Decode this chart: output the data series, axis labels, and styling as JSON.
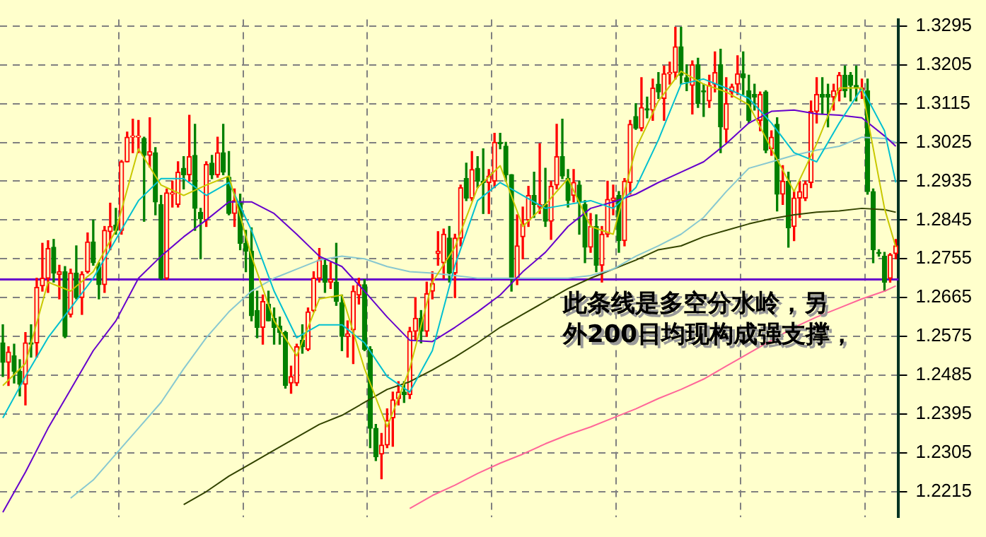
{
  "chart_data": {
    "type": "candlestick",
    "categories": [
      null,
      null,
      null,
      null,
      null,
      null,
      null,
      null,
      null,
      null,
      null,
      null,
      null,
      null,
      null,
      null,
      null,
      null,
      null,
      null,
      null,
      null,
      null,
      null,
      null,
      null,
      null,
      null,
      null,
      null,
      null,
      null,
      null,
      null,
      null,
      null,
      null,
      null,
      null,
      null,
      null,
      null,
      null,
      null,
      null,
      null,
      null,
      null,
      null,
      null,
      null,
      null,
      null,
      null,
      null,
      null,
      null,
      null,
      null,
      null,
      null,
      null,
      null,
      null,
      null,
      null,
      null,
      null,
      null,
      null,
      null,
      null,
      null,
      null,
      null,
      null,
      null,
      null,
      null,
      null,
      null,
      null,
      null,
      null,
      null,
      null,
      null,
      null,
      null,
      null,
      null,
      null,
      null,
      null,
      null,
      null,
      null,
      null,
      null,
      null,
      null,
      null,
      null,
      null,
      null,
      null,
      null,
      null,
      null,
      null,
      null,
      null,
      null,
      null,
      null,
      null,
      null,
      null,
      null,
      null,
      null,
      null,
      null,
      null,
      null,
      null,
      null,
      null,
      null,
      null,
      null,
      null,
      null,
      null,
      null,
      null,
      null,
      null,
      null,
      null,
      null,
      null,
      null,
      null,
      null,
      null,
      null,
      null,
      null,
      null,
      null,
      null,
      null,
      null,
      null,
      null,
      null,
      null,
      null
    ],
    "ohlc": [
      [
        1.256,
        1.2602,
        1.2482,
        1.2515
      ],
      [
        1.2515,
        1.2551,
        1.2461,
        1.2539
      ],
      [
        1.253,
        1.2557,
        1.2467,
        1.2494
      ],
      [
        1.2494,
        1.2521,
        1.2437,
        1.2464
      ],
      [
        1.2464,
        1.2584,
        1.2416,
        1.256
      ],
      [
        1.256,
        1.2602,
        1.2527,
        1.2557
      ],
      [
        1.256,
        1.271,
        1.2527,
        1.2689
      ],
      [
        1.2692,
        1.2791,
        1.268,
        1.271
      ],
      [
        1.271,
        1.2797,
        1.2677,
        1.2779
      ],
      [
        1.2782,
        1.28,
        1.2701,
        1.2722
      ],
      [
        1.2719,
        1.274,
        1.2662,
        1.2725
      ],
      [
        1.2725,
        1.2737,
        1.2572,
        1.2575
      ],
      [
        1.2626,
        1.2731,
        1.262,
        1.2722
      ],
      [
        1.2722,
        1.2785,
        1.2662,
        1.2665
      ],
      [
        1.2665,
        1.2725,
        1.2626,
        1.2719
      ],
      [
        1.2725,
        1.2815,
        1.2722,
        1.2794
      ],
      [
        1.2794,
        1.2845,
        1.274,
        1.2746
      ],
      [
        1.2737,
        1.2746,
        1.2662,
        1.2695
      ],
      [
        1.2695,
        1.283,
        1.2677,
        1.2821
      ],
      [
        1.2818,
        1.2884,
        1.2776,
        1.283
      ],
      [
        1.2833,
        1.2872,
        1.2812,
        1.2821
      ],
      [
        1.2821,
        1.2983,
        1.2812,
        1.298
      ],
      [
        1.298,
        1.3049,
        1.298,
        1.3037
      ],
      [
        1.3037,
        1.3079,
        1.3001,
        1.304
      ],
      [
        1.3037,
        1.3076,
        1.3001,
        1.304
      ],
      [
        1.3034,
        1.3037,
        1.2842,
        1.2995
      ],
      [
        1.2995,
        1.3082,
        1.2968,
        1.3004
      ],
      [
        1.3001,
        1.3013,
        1.2857,
        1.2887
      ],
      [
        1.2881,
        1.2902,
        1.2707,
        1.271
      ],
      [
        1.271,
        1.2917,
        1.2707,
        1.2908
      ],
      [
        1.2905,
        1.2935,
        1.2875,
        1.2908
      ],
      [
        1.2881,
        1.298,
        1.2875,
        1.2956
      ],
      [
        1.2965,
        1.2992,
        1.2917,
        1.295
      ],
      [
        1.295,
        1.3088,
        1.2935,
        1.2992
      ],
      [
        1.2995,
        1.3067,
        1.2821,
        1.2872
      ],
      [
        1.2863,
        1.2872,
        1.2755,
        1.2848
      ],
      [
        1.2845,
        1.298,
        1.283,
        1.2974
      ],
      [
        1.2977,
        1.2995,
        1.2941,
        1.295
      ],
      [
        1.295,
        1.3037,
        1.2944,
        1.3001
      ],
      [
        1.3001,
        1.3067,
        1.295,
        1.2956
      ],
      [
        1.2944,
        1.3004,
        1.2857,
        1.286
      ],
      [
        1.286,
        1.2917,
        1.283,
        1.289
      ],
      [
        1.2887,
        1.2905,
        1.2776,
        1.2791
      ],
      [
        1.2791,
        1.2821,
        1.2725,
        1.2773
      ],
      [
        1.2773,
        1.2827,
        1.2611,
        1.2623
      ],
      [
        1.2635,
        1.268,
        1.2572,
        1.2596
      ],
      [
        1.2596,
        1.2671,
        1.2557,
        1.2656
      ],
      [
        1.265,
        1.268,
        1.2611,
        1.2611
      ],
      [
        1.2617,
        1.2641,
        1.2557,
        1.2596
      ],
      [
        1.2599,
        1.262,
        1.2557,
        1.2584
      ],
      [
        1.2584,
        1.2587,
        1.2455,
        1.2461
      ],
      [
        1.2467,
        1.2506,
        1.2443,
        1.2482
      ],
      [
        1.2467,
        1.2557,
        1.2461,
        1.2551
      ],
      [
        1.2566,
        1.2602,
        1.2536,
        1.2551
      ],
      [
        1.2545,
        1.2641,
        1.2542,
        1.2632
      ],
      [
        1.2635,
        1.2725,
        1.2632,
        1.271
      ],
      [
        1.271,
        1.2779,
        1.2701,
        1.2752
      ],
      [
        1.274,
        1.2755,
        1.2677,
        1.2701
      ],
      [
        1.2701,
        1.2746,
        1.2686,
        1.2707
      ],
      [
        1.2701,
        1.2791,
        1.2647,
        1.2656
      ],
      [
        1.2653,
        1.2671,
        1.2542,
        1.2575
      ],
      [
        1.2575,
        1.2611,
        1.2527,
        1.2581
      ],
      [
        1.259,
        1.2692,
        1.2512,
        1.268
      ],
      [
        1.2671,
        1.271,
        1.265,
        1.2695
      ],
      [
        1.2695,
        1.2707,
        1.2542,
        1.2545
      ],
      [
        1.2545,
        1.2551,
        1.2317,
        1.2362
      ],
      [
        1.2362,
        1.2371,
        1.2287,
        1.2296
      ],
      [
        1.2302,
        1.235,
        1.2245,
        1.2323
      ],
      [
        1.2323,
        1.2407,
        1.2317,
        1.238
      ],
      [
        1.2386,
        1.2446,
        1.232,
        1.2428
      ],
      [
        1.2431,
        1.247,
        1.2416,
        1.2446
      ],
      [
        1.2446,
        1.247,
        1.2422,
        1.244
      ],
      [
        1.244,
        1.2596,
        1.2431,
        1.2587
      ],
      [
        1.2587,
        1.2665,
        1.2566,
        1.2617
      ],
      [
        1.2617,
        1.2635,
        1.256,
        1.2587
      ],
      [
        1.2587,
        1.2701,
        1.2575,
        1.2674
      ],
      [
        1.268,
        1.2725,
        1.2662,
        1.2698
      ],
      [
        1.2767,
        1.2818,
        1.274,
        1.2773
      ],
      [
        1.2746,
        1.2824,
        1.271,
        1.2812
      ],
      [
        1.2803,
        1.283,
        1.2701,
        1.2722
      ],
      [
        1.2722,
        1.2812,
        1.2665,
        1.2803
      ],
      [
        1.2803,
        1.2926,
        1.2785,
        1.292
      ],
      [
        1.2941,
        1.2977,
        1.289,
        1.2896
      ],
      [
        1.2896,
        1.3004,
        1.289,
        1.2962
      ],
      [
        1.2965,
        1.2992,
        1.292,
        1.2935
      ],
      [
        1.2935,
        1.301,
        1.286,
        1.2932
      ],
      [
        1.2932,
        1.2962,
        1.286,
        1.2947
      ],
      [
        1.2935,
        1.3046,
        1.292,
        1.3025
      ],
      [
        1.3025,
        1.3046,
        1.301,
        1.3022
      ],
      [
        1.3016,
        1.3025,
        1.2935,
        1.295
      ],
      [
        1.295,
        1.295,
        1.268,
        1.271
      ],
      [
        1.271,
        1.2857,
        1.2695,
        1.2785
      ],
      [
        1.2806,
        1.2875,
        1.2755,
        1.2836
      ],
      [
        1.2845,
        1.2923,
        1.283,
        1.2902
      ],
      [
        1.2902,
        1.2956,
        1.2851,
        1.2881
      ],
      [
        1.2875,
        1.3022,
        1.286,
        1.2881
      ],
      [
        1.2881,
        1.2965,
        1.283,
        1.2842
      ],
      [
        1.2842,
        1.2935,
        1.28,
        1.2923
      ],
      [
        1.2926,
        1.3067,
        1.2917,
        1.2992
      ],
      [
        1.2992,
        1.3079,
        1.2941,
        1.2947
      ],
      [
        1.2941,
        1.2962,
        1.2875,
        1.289
      ],
      [
        1.2902,
        1.2962,
        1.2887,
        1.2932
      ],
      [
        1.2926,
        1.2935,
        1.2812,
        1.2887
      ],
      [
        1.2881,
        1.289,
        1.2746,
        1.2782
      ],
      [
        1.2782,
        1.286,
        1.277,
        1.283
      ],
      [
        1.283,
        1.2857,
        1.2725,
        1.274
      ],
      [
        1.274,
        1.283,
        1.2701,
        1.2812
      ],
      [
        1.2812,
        1.2935,
        1.2806,
        1.2893
      ],
      [
        1.289,
        1.2926,
        1.2857,
        1.2896
      ],
      [
        1.2902,
        1.2911,
        1.277,
        1.2797
      ],
      [
        1.2797,
        1.2941,
        1.2785,
        1.2935
      ],
      [
        1.2932,
        1.3076,
        1.2905,
        1.3067
      ],
      [
        1.3085,
        1.3115,
        1.3055,
        1.3058
      ],
      [
        1.3058,
        1.3175,
        1.3052,
        1.3106
      ],
      [
        1.3103,
        1.313,
        1.3082,
        1.31
      ],
      [
        1.31,
        1.3172,
        1.3076,
        1.3151
      ],
      [
        1.316,
        1.3187,
        1.3127,
        1.3142
      ],
      [
        1.3127,
        1.3202,
        1.3076,
        1.3184
      ],
      [
        1.3184,
        1.3211,
        1.316,
        1.3187
      ],
      [
        1.3187,
        1.3292,
        1.3172,
        1.3247
      ],
      [
        1.3247,
        1.3292,
        1.316,
        1.3181
      ],
      [
        1.3175,
        1.3205,
        1.3145,
        1.3166
      ],
      [
        1.3157,
        1.3214,
        1.3091,
        1.3205
      ],
      [
        1.3205,
        1.322,
        1.3106,
        1.3115
      ],
      [
        1.3145,
        1.316,
        1.3085,
        1.3142
      ],
      [
        1.3121,
        1.3181,
        1.3106,
        1.3157
      ],
      [
        1.316,
        1.3235,
        1.3142,
        1.3187
      ],
      [
        1.3205,
        1.3241,
        1.3001,
        1.3061
      ],
      [
        1.3055,
        1.3175,
        1.3025,
        1.3115
      ],
      [
        1.3142,
        1.316,
        1.313,
        1.3154
      ],
      [
        1.316,
        1.3226,
        1.3136,
        1.3184
      ],
      [
        1.3184,
        1.3235,
        1.3136,
        1.3175
      ],
      [
        1.3145,
        1.3181,
        1.307,
        1.3076
      ],
      [
        1.3136,
        1.316,
        1.31,
        1.313
      ],
      [
        1.3076,
        1.3142,
        1.3052,
        1.3136
      ],
      [
        1.3142,
        1.3145,
        1.3001,
        1.3007
      ],
      [
        1.301,
        1.3052,
        1.2995,
        1.3037
      ],
      [
        1.3067,
        1.3082,
        1.2866,
        1.2905
      ],
      [
        1.2905,
        1.2971,
        1.2881,
        1.2935
      ],
      [
        1.2935,
        1.2956,
        1.2782,
        1.2827
      ],
      [
        1.283,
        1.2911,
        1.2797,
        1.2896
      ],
      [
        1.2896,
        1.2935,
        1.2851,
        1.2911
      ],
      [
        1.2896,
        1.2935,
        1.289,
        1.2929
      ],
      [
        1.2932,
        1.3121,
        1.292,
        1.3097
      ],
      [
        1.3097,
        1.3175,
        1.307,
        1.3136
      ],
      [
        1.3136,
        1.3175,
        1.3091,
        1.313
      ],
      [
        1.3136,
        1.316,
        1.3061,
        1.313
      ],
      [
        1.313,
        1.316,
        1.31,
        1.3145
      ],
      [
        1.3145,
        1.3187,
        1.3121,
        1.3181
      ],
      [
        1.3181,
        1.3202,
        1.313,
        1.3145
      ],
      [
        1.3181,
        1.3187,
        1.3121,
        1.3157
      ],
      [
        1.3157,
        1.3202,
        1.3121,
        1.3151
      ],
      [
        1.3142,
        1.3172,
        1.3127,
        1.3151
      ],
      [
        1.3145,
        1.3172,
        1.2905,
        1.2911
      ],
      [
        1.2911,
        1.2917,
        1.2746,
        1.2776
      ],
      [
        1.277,
        1.2776,
        1.2761,
        1.2767
      ],
      [
        1.2761,
        1.277,
        1.268,
        1.2701
      ],
      [
        1.271,
        1.2767,
        1.2701,
        1.2764
      ],
      [
        1.2767,
        1.28,
        1.2755,
        1.2785
      ]
    ],
    "colors": [
      "#008000",
      "#ff0000",
      "#008000",
      "#008000",
      "#ff0000",
      "#008000",
      "#ff0000",
      "#ff0000",
      "#ff0000",
      "#008000",
      "#ff0000",
      "#008000",
      "#ff0000",
      "#008000",
      "#ff0000",
      "#ff0000",
      "#008000",
      "#008000",
      "#ff0000",
      "#ff0000",
      "#008000",
      "#ff0000",
      "#ff0000",
      "#ff0000",
      "#ff0000",
      "#008000",
      "#ff0000",
      "#008000",
      "#008000",
      "#ff0000",
      "#ff0000",
      "#ff0000",
      "#008000",
      "#ff0000",
      "#008000",
      "#008000",
      "#ff0000",
      "#008000",
      "#ff0000",
      "#008000",
      "#008000",
      "#ff0000",
      "#008000",
      "#008000",
      "#008000",
      "#008000",
      "#ff0000",
      "#008000",
      "#008000",
      "#008000",
      "#008000",
      "#ff0000",
      "#ff0000",
      "#008000",
      "#ff0000",
      "#ff0000",
      "#ff0000",
      "#008000",
      "#ff0000",
      "#008000",
      "#008000",
      "#ff0000",
      "#ff0000",
      "#ff0000",
      "#008000",
      "#008000",
      "#008000",
      "#ff0000",
      "#ff0000",
      "#ff0000",
      "#ff0000",
      "#008000",
      "#ff0000",
      "#ff0000",
      "#008000",
      "#ff0000",
      "#ff0000",
      "#ff0000",
      "#ff0000",
      "#008000",
      "#ff0000",
      "#ff0000",
      "#008000",
      "#ff0000",
      "#008000",
      "#008000",
      "#ff0000",
      "#ff0000",
      "#008000",
      "#008000",
      "#008000",
      "#ff0000",
      "#ff0000",
      "#ff0000",
      "#008000",
      "#ff0000",
      "#008000",
      "#ff0000",
      "#ff0000",
      "#008000",
      "#008000",
      "#ff0000",
      "#008000",
      "#008000",
      "#ff0000",
      "#008000",
      "#ff0000",
      "#ff0000",
      "#ff0000",
      "#008000",
      "#ff0000",
      "#ff0000",
      "#008000",
      "#ff0000",
      "#008000",
      "#ff0000",
      "#008000",
      "#ff0000",
      "#ff0000",
      "#ff0000",
      "#008000",
      "#008000",
      "#ff0000",
      "#008000",
      "#008000",
      "#ff0000",
      "#ff0000",
      "#008000",
      "#ff0000",
      "#ff0000",
      "#ff0000",
      "#008000",
      "#008000",
      "#008000",
      "#ff0000",
      "#008000",
      "#ff0000",
      "#008000",
      "#ff0000",
      "#008000",
      "#ff0000",
      "#ff0000",
      "#ff0000",
      "#ff0000",
      "#ff0000",
      "#008000",
      "#008000",
      "#ff0000",
      "#ff0000",
      "#008000",
      "#008000",
      "#008000",
      "#ff0000",
      "#008000",
      "#008000",
      "#008000",
      "#008000",
      "#ff0000",
      "#ff0000"
    ],
    "series": [
      {
        "type": "line",
        "color": "#c8c800",
        "values": [
          1.2461,
          null,
          null,
          null,
          1.2512,
          null,
          null,
          null,
          1.2701,
          null,
          null,
          null,
          1.268,
          null,
          null,
          null,
          1.2725,
          null,
          null,
          null,
          1.2821,
          null,
          null,
          null,
          1.301,
          null,
          null,
          null,
          1.2926,
          null,
          null,
          null,
          1.2902,
          null,
          null,
          null,
          1.2926,
          null,
          null,
          null,
          1.2947,
          null,
          null,
          null,
          1.2761,
          null,
          null,
          null,
          1.2611,
          null,
          null,
          null,
          1.253,
          null,
          null,
          null,
          1.2662,
          null,
          null,
          null,
          1.2671,
          null,
          null,
          null,
          1.25,
          null,
          null,
          null,
          1.2365,
          null,
          null,
          null,
          1.25,
          null,
          null,
          null,
          1.2701,
          null,
          null,
          null,
          1.2782,
          null,
          null,
          null,
          1.292,
          null,
          null,
          null,
          1.2971,
          null,
          null,
          null,
          1.283,
          null,
          null,
          null,
          1.2881,
          null,
          null,
          null,
          1.2941,
          null,
          null,
          null,
          1.283,
          null,
          null,
          null,
          1.2812,
          null,
          null,
          null,
          1.301,
          null,
          null,
          null,
          1.3121,
          null,
          null,
          null,
          1.319,
          null,
          null,
          null,
          1.316,
          null,
          null,
          null,
          1.3142,
          null,
          null,
          null,
          1.3112,
          null,
          null,
          null,
          1.301,
          null,
          null,
          null,
          1.2911,
          null,
          null,
          null,
          1.3022,
          null,
          null,
          null,
          1.3151,
          null,
          null,
          null,
          1.3151,
          null,
          null,
          null,
          1.2872,
          null,
          1.2782
        ]
      },
      {
        "type": "line",
        "color": "#00c0d0",
        "values": [
          1.2386,
          null,
          null,
          null,
          1.2482,
          null,
          null,
          null,
          1.2572,
          null,
          null,
          null,
          1.2641,
          null,
          null,
          null,
          1.271,
          null,
          null,
          null,
          1.28,
          null,
          null,
          null,
          1.289,
          null,
          null,
          null,
          1.2941,
          null,
          null,
          null,
          1.2941,
          null,
          null,
          null,
          1.2902,
          null,
          null,
          null,
          1.2932,
          null,
          null,
          null,
          1.2821,
          null,
          null,
          null,
          1.268,
          null,
          null,
          null,
          1.2572,
          null,
          null,
          null,
          1.2602,
          null,
          null,
          null,
          1.2602,
          null,
          null,
          null,
          1.256,
          null,
          null,
          null,
          1.2482,
          null,
          null,
          null,
          1.2446,
          null,
          null,
          null,
          1.2542,
          null,
          null,
          null,
          1.274,
          null,
          null,
          null,
          1.289,
          null,
          null,
          null,
          1.2932,
          null,
          null,
          null,
          1.2902,
          null,
          null,
          null,
          1.2872,
          null,
          null,
          null,
          1.2881,
          null,
          null,
          null,
          1.289,
          null,
          null,
          null,
          1.2872,
          null,
          null,
          null,
          1.292,
          null,
          null,
          null,
          1.3031,
          null,
          null,
          null,
          1.316,
          null,
          null,
          null,
          1.3172,
          null,
          null,
          null,
          1.3151,
          null,
          null,
          null,
          1.3127,
          null,
          null,
          null,
          1.307,
          null,
          null,
          null,
          1.3001,
          null,
          null,
          null,
          1.298,
          null,
          null,
          null,
          1.307,
          null,
          null,
          null,
          1.3151,
          null,
          null,
          null,
          1.3052,
          null,
          1.2932
        ]
      },
      {
        "type": "line",
        "color": "#6600cc",
        "values": [
          1.2167,
          null,
          null,
          null,
          1.226,
          null,
          null,
          null,
          1.2362,
          null,
          null,
          null,
          1.2452,
          null,
          null,
          null,
          1.2542,
          null,
          null,
          null,
          1.2611,
          null,
          null,
          null,
          1.271,
          null,
          null,
          null,
          1.2761,
          null,
          null,
          null,
          1.2806,
          null,
          null,
          null,
          1.2845,
          null,
          null,
          null,
          1.2887,
          null,
          null,
          null,
          1.2887,
          null,
          null,
          null,
          1.286,
          null,
          null,
          null,
          1.2812,
          null,
          null,
          null,
          1.2761,
          null,
          null,
          null,
          1.2737,
          null,
          null,
          null,
          1.268,
          null,
          null,
          null,
          1.262,
          null,
          null,
          null,
          1.2566,
          null,
          null,
          null,
          1.2563,
          null,
          null,
          null,
          1.2596,
          null,
          null,
          null,
          1.2632,
          null,
          null,
          null,
          1.2671,
          null,
          null,
          null,
          1.2725,
          null,
          null,
          null,
          1.277,
          null,
          null,
          null,
          1.283,
          null,
          null,
          null,
          1.2872,
          null,
          null,
          null,
          1.2887,
          null,
          null,
          null,
          1.2905,
          null,
          null,
          null,
          1.2932,
          null,
          null,
          null,
          1.2956,
          null,
          null,
          null,
          1.298,
          null,
          null,
          null,
          1.3022,
          null,
          null,
          null,
          1.307,
          null,
          null,
          null,
          1.3097,
          null,
          null,
          null,
          1.31,
          null,
          null,
          null,
          1.3091,
          null,
          null,
          null,
          1.3088,
          null,
          null,
          null,
          1.3082,
          null,
          null,
          null,
          1.304,
          null,
          1.3016
        ]
      },
      {
        "type": "line",
        "color": "#88c8d0",
        "values": [
          null,
          null,
          null,
          null,
          null,
          null,
          null,
          null,
          null,
          null,
          null,
          null,
          1.22,
          null,
          null,
          null,
          1.2242,
          null,
          null,
          null,
          1.2302,
          null,
          null,
          null,
          1.2362,
          null,
          null,
          null,
          1.2422,
          null,
          null,
          null,
          1.25,
          null,
          null,
          null,
          1.2572,
          null,
          null,
          null,
          1.2632,
          null,
          null,
          null,
          1.268,
          null,
          null,
          null,
          1.271,
          null,
          null,
          null,
          1.2731,
          null,
          null,
          null,
          1.2752,
          null,
          null,
          null,
          1.2761,
          null,
          null,
          null,
          1.2755,
          null,
          null,
          null,
          1.2737,
          null,
          null,
          null,
          1.2725,
          null,
          null,
          null,
          1.2722,
          null,
          null,
          null,
          1.2716,
          null,
          null,
          null,
          1.271,
          null,
          null,
          null,
          1.271,
          null,
          null,
          null,
          1.271,
          null,
          null,
          null,
          1.271,
          null,
          null,
          null,
          1.271,
          null,
          null,
          null,
          1.2716,
          null,
          null,
          null,
          1.2731,
          null,
          null,
          null,
          1.2761,
          null,
          null,
          null,
          1.2785,
          null,
          null,
          null,
          1.2812,
          null,
          null,
          null,
          1.2851,
          null,
          null,
          null,
          1.2911,
          null,
          null,
          null,
          1.2965,
          null,
          null,
          null,
          1.298,
          null,
          null,
          null,
          1.2995,
          null,
          null,
          null,
          1.3007,
          null,
          null,
          null,
          1.3016,
          null,
          null,
          null,
          1.3037,
          null,
          null,
          null,
          1.3034,
          null,
          1.3025
        ]
      },
      {
        "type": "line",
        "color": "#334400",
        "values": [
          null,
          null,
          null,
          null,
          null,
          null,
          null,
          null,
          null,
          null,
          null,
          null,
          null,
          null,
          null,
          null,
          null,
          null,
          null,
          null,
          null,
          null,
          null,
          null,
          null,
          null,
          null,
          null,
          null,
          null,
          null,
          null,
          1.2185,
          null,
          null,
          null,
          1.2215,
          null,
          null,
          null,
          1.2251,
          null,
          null,
          null,
          1.2281,
          null,
          null,
          null,
          1.2311,
          null,
          null,
          null,
          1.2341,
          null,
          null,
          null,
          1.2371,
          null,
          null,
          null,
          1.2392,
          null,
          null,
          null,
          1.2422,
          null,
          null,
          null,
          1.2452,
          null,
          null,
          null,
          1.247,
          null,
          null,
          null,
          1.2497,
          null,
          null,
          null,
          1.2527,
          null,
          null,
          null,
          1.256,
          null,
          null,
          null,
          1.2596,
          null,
          null,
          null,
          1.2626,
          null,
          null,
          null,
          1.2656,
          null,
          null,
          null,
          1.2686,
          null,
          null,
          null,
          1.271,
          null,
          null,
          null,
          1.2731,
          null,
          null,
          null,
          1.2752,
          null,
          null,
          null,
          1.2776,
          null,
          null,
          null,
          1.2785,
          null,
          null,
          null,
          1.2806,
          null,
          null,
          null,
          1.2821,
          null,
          null,
          null,
          1.2836,
          null,
          null,
          null,
          1.2848,
          null,
          null,
          null,
          1.2857,
          null,
          null,
          null,
          1.2863,
          null,
          null,
          null,
          1.2866,
          null,
          null,
          null,
          1.2872,
          null,
          null,
          null,
          1.2869,
          null,
          1.2863
        ]
      },
      {
        "type": "line",
        "color": "#ff6699",
        "values": [
          null,
          null,
          null,
          null,
          null,
          null,
          null,
          null,
          null,
          null,
          null,
          null,
          null,
          null,
          null,
          null,
          null,
          null,
          null,
          null,
          null,
          null,
          null,
          null,
          null,
          null,
          null,
          null,
          null,
          null,
          null,
          null,
          null,
          null,
          null,
          null,
          null,
          null,
          null,
          null,
          null,
          null,
          null,
          null,
          null,
          null,
          null,
          null,
          null,
          null,
          null,
          null,
          null,
          null,
          null,
          null,
          null,
          null,
          null,
          null,
          null,
          null,
          null,
          null,
          null,
          null,
          null,
          null,
          null,
          null,
          null,
          null,
          1.2176,
          null,
          null,
          null,
          1.2206,
          null,
          null,
          null,
          1.223,
          null,
          null,
          null,
          1.2257,
          null,
          null,
          null,
          1.2281,
          null,
          null,
          null,
          1.2302,
          null,
          null,
          null,
          1.2326,
          null,
          null,
          null,
          1.2347,
          null,
          null,
          null,
          1.2365,
          null,
          null,
          null,
          1.2386,
          null,
          null,
          null,
          1.2407,
          null,
          null,
          null,
          1.2431,
          null,
          null,
          null,
          1.2452,
          null,
          null,
          null,
          1.2476,
          null,
          null,
          null,
          1.2506,
          null,
          null,
          null,
          1.2536,
          null,
          null,
          null,
          1.2566,
          null,
          null,
          null,
          1.2596,
          null,
          null,
          null,
          1.262,
          null,
          null,
          null,
          1.2641,
          null,
          null,
          null,
          1.2662,
          null,
          null,
          null,
          1.268,
          null,
          1.2692
        ]
      }
    ],
    "ylim": [
      1.2155,
      1.331
    ],
    "yticks": [
      1.2215,
      1.2305,
      1.2395,
      1.2485,
      1.2575,
      1.2665,
      1.2755,
      1.2845,
      1.2935,
      1.3025,
      1.3115,
      1.3205,
      1.3295
    ],
    "ref_lines": [
      {
        "axis": "y",
        "value": 1.2707,
        "color": "#6600cc"
      }
    ],
    "annotations": [
      "此条线是多空分水岭，另",
      "外200日均现构成强支撑，"
    ],
    "grid": true,
    "marker": "none",
    "tick_labels": "y"
  }
}
